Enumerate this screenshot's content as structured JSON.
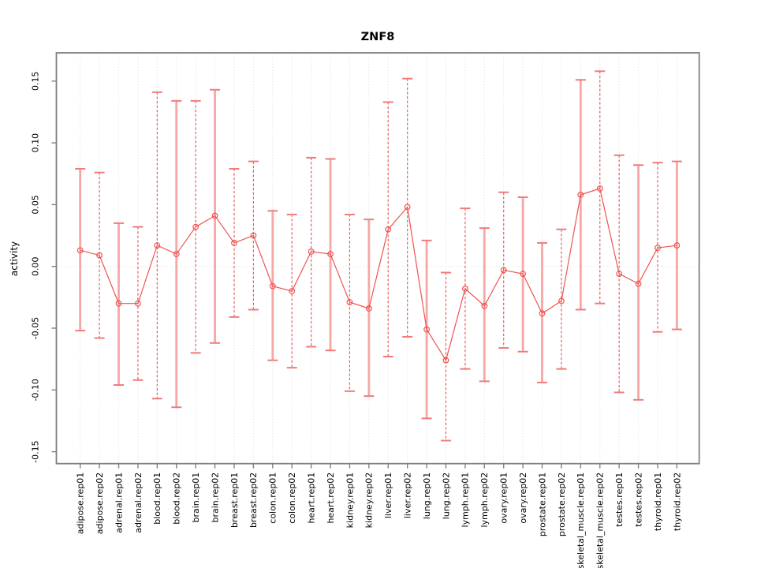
{
  "chart_data": {
    "type": "line",
    "title": "ZNF8",
    "xlabel": "",
    "ylabel": "activity",
    "ylim": [
      -0.165,
      0.172
    ],
    "yticks": [
      0.15,
      0.1,
      0.05,
      0.0,
      -0.05,
      -0.1,
      -0.15
    ],
    "ytick_labels": [
      "0.15",
      "0.10",
      "0.05",
      "0.00",
      "-0.05",
      "-0.10",
      "-0.15"
    ],
    "grid": "light dotted vertical gridline at every category; light dotted horizontal line at y=0",
    "legend": "none",
    "point_marker": "open-circle",
    "x_tick_label_rotation": 90,
    "categories": [
      "adipose.rep01",
      "adipose.rep02",
      "adrenal.rep01",
      "adrenal.rep02",
      "blood.rep01",
      "blood.rep02",
      "brain.rep01",
      "brain.rep02",
      "breast.rep01",
      "breast.rep02",
      "colon.rep01",
      "colon.rep02",
      "heart.rep01",
      "heart.rep02",
      "kidney.rep01",
      "kidney.rep02",
      "liver.rep01",
      "liver.rep02",
      "lung.rep01",
      "lung.rep02",
      "lymph.rep01",
      "lymph.rep02",
      "ovary.rep01",
      "ovary.rep02",
      "prostate.rep01",
      "prostate.rep02",
      "skeletal_muscle.rep01",
      "skeletal_muscle.rep02",
      "testes.rep01",
      "testes.rep02",
      "thyroid.rep01",
      "thyroid.rep02"
    ],
    "series": [
      {
        "name": "activity",
        "values": [
          0.013,
          0.009,
          -0.03,
          -0.03,
          0.017,
          0.01,
          0.032,
          0.041,
          0.019,
          0.025,
          -0.016,
          -0.02,
          0.012,
          0.01,
          -0.029,
          -0.034,
          0.03,
          0.048,
          -0.051,
          -0.076,
          -0.018,
          -0.032,
          -0.003,
          -0.006,
          -0.038,
          -0.028,
          0.058,
          0.063,
          -0.006,
          -0.014,
          0.015,
          0.017
        ],
        "err_high": [
          0.079,
          0.076,
          0.035,
          0.032,
          0.141,
          0.134,
          0.134,
          0.143,
          0.079,
          0.085,
          0.045,
          0.042,
          0.088,
          0.087,
          0.042,
          0.038,
          0.133,
          0.152,
          0.021,
          -0.005,
          0.047,
          0.031,
          0.06,
          0.056,
          0.019,
          0.03,
          0.151,
          0.158,
          0.09,
          0.082,
          0.084,
          0.085
        ],
        "err_low": [
          -0.052,
          -0.058,
          -0.096,
          -0.092,
          -0.107,
          -0.114,
          -0.07,
          -0.062,
          -0.041,
          -0.035,
          -0.076,
          -0.082,
          -0.065,
          -0.068,
          -0.101,
          -0.105,
          -0.073,
          -0.057,
          -0.123,
          -0.141,
          -0.083,
          -0.093,
          -0.066,
          -0.069,
          -0.094,
          -0.083,
          -0.035,
          -0.03,
          -0.102,
          -0.108,
          -0.053,
          -0.051
        ],
        "bar_style": [
          "solid",
          "dashed",
          "solid",
          "dashed",
          "dashed",
          "solid",
          "dashed",
          "solid",
          "dashed",
          "dashed",
          "solid",
          "dashed",
          "dashed",
          "solid",
          "dashed",
          "solid",
          "dashed",
          "dashed",
          "solid",
          "dashed",
          "dashed",
          "solid",
          "dashed",
          "solid",
          "solid",
          "dashed",
          "solid",
          "dashed",
          "dashed",
          "solid",
          "dashed",
          "solid"
        ]
      }
    ],
    "colors": {
      "line": "#ef5350",
      "point": "#ef5350",
      "error_bar_solid": "#f7a6a6",
      "error_bar_dashed": "#e9595b",
      "error_cap": "#f07c7c",
      "gridline": "#dcdcdc",
      "frame": "#818181",
      "text": "#000000",
      "background": "#ffffff"
    }
  }
}
